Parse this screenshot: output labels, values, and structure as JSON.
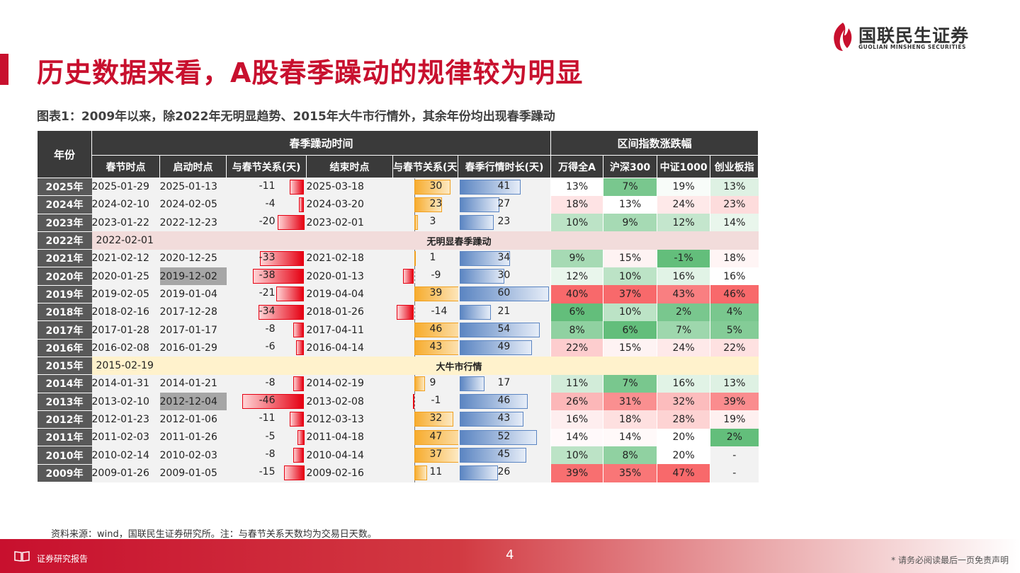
{
  "header": {
    "title": "历史数据来看，A股春季躁动的规律较为明显",
    "logo_cn": "国联民生证券",
    "logo_en": "GUOLIAN MINSHENG SECURITIES"
  },
  "figure_caption": "图表1：2009年以来，除2022年无明显趋势、2015年大牛市行情外，其余年份均出现春季躁动",
  "table": {
    "group_headers": {
      "year": "年份",
      "timing": "春季躁动时间",
      "returns": "区间指数涨跌幅"
    },
    "column_headers": [
      "春节时点",
      "启动时点",
      "与春节关系(天)",
      "结束时点",
      "与春节关系(天)",
      "春季行情时长(天)",
      "万得全A",
      "沪深300",
      "中证1000",
      "创业板指"
    ],
    "rows": [
      {
        "year": "2025年",
        "spring": "2025-01-29",
        "start": "2025-01-13",
        "start_rel": -11,
        "end": "2025-03-18",
        "end_rel": 30,
        "duration": 41,
        "wind": "13%",
        "hs300": "7%",
        "zz1000": "19%",
        "cyb": "13%"
      },
      {
        "year": "2024年",
        "spring": "2024-02-10",
        "start": "2024-02-05",
        "start_rel": -4,
        "end": "2024-03-20",
        "end_rel": 23,
        "duration": 27,
        "wind": "18%",
        "hs300": "13%",
        "zz1000": "24%",
        "cyb": "23%"
      },
      {
        "year": "2023年",
        "spring": "2023-01-22",
        "start": "2022-12-23",
        "start_rel": -20,
        "end": "2023-02-01",
        "end_rel": 3,
        "duration": 23,
        "wind": "10%",
        "hs300": "9%",
        "zz1000": "12%",
        "cyb": "14%"
      },
      {
        "year": "2022年",
        "spring": "2022-02-01",
        "special": "无明显春季躁动"
      },
      {
        "year": "2021年",
        "spring": "2021-02-12",
        "start": "2020-12-25",
        "start_rel": -33,
        "end": "2021-02-18",
        "end_rel": 1,
        "duration": 34,
        "wind": "9%",
        "hs300": "15%",
        "zz1000": "-1%",
        "cyb": "18%"
      },
      {
        "year": "2020年",
        "spring": "2020-01-25",
        "start": "2019-12-02",
        "start_hl": true,
        "start_rel": -38,
        "end": "2020-01-13",
        "end_rel": -9,
        "duration": 30,
        "wind": "12%",
        "hs300": "10%",
        "zz1000": "16%",
        "cyb": "16%"
      },
      {
        "year": "2019年",
        "spring": "2019-02-05",
        "start": "2019-01-04",
        "start_rel": -21,
        "end": "2019-04-04",
        "end_rel": 39,
        "duration": 60,
        "wind": "40%",
        "hs300": "37%",
        "zz1000": "43%",
        "cyb": "46%"
      },
      {
        "year": "2018年",
        "spring": "2018-02-16",
        "start": "2017-12-28",
        "start_rel": -34,
        "end": "2018-01-26",
        "end_rel": -14,
        "duration": 21,
        "wind": "6%",
        "hs300": "10%",
        "zz1000": "2%",
        "cyb": "4%"
      },
      {
        "year": "2017年",
        "spring": "2017-01-28",
        "start": "2017-01-17",
        "start_rel": -8,
        "end": "2017-04-11",
        "end_rel": 46,
        "duration": 54,
        "wind": "8%",
        "hs300": "6%",
        "zz1000": "7%",
        "cyb": "5%"
      },
      {
        "year": "2016年",
        "spring": "2016-02-08",
        "start": "2016-01-29",
        "start_rel": -6,
        "end": "2016-04-14",
        "end_rel": 43,
        "duration": 49,
        "wind": "22%",
        "hs300": "15%",
        "zz1000": "24%",
        "cyb": "22%"
      },
      {
        "year": "2015年",
        "spring": "2015-02-19",
        "special": "大牛市行情"
      },
      {
        "year": "2014年",
        "spring": "2014-01-31",
        "start": "2014-01-21",
        "start_rel": -8,
        "end": "2014-02-19",
        "end_rel": 9,
        "duration": 17,
        "wind": "11%",
        "hs300": "7%",
        "zz1000": "16%",
        "cyb": "13%"
      },
      {
        "year": "2013年",
        "spring": "2013-02-10",
        "start": "2012-12-04",
        "start_hl": true,
        "start_rel": -46,
        "end": "2013-02-08",
        "end_rel": -1,
        "duration": 46,
        "wind": "26%",
        "hs300": "31%",
        "zz1000": "32%",
        "cyb": "39%"
      },
      {
        "year": "2012年",
        "spring": "2012-01-23",
        "start": "2012-01-06",
        "start_rel": -11,
        "end": "2012-03-13",
        "end_rel": 32,
        "duration": 43,
        "wind": "16%",
        "hs300": "18%",
        "zz1000": "28%",
        "cyb": "19%"
      },
      {
        "year": "2011年",
        "spring": "2011-02-03",
        "start": "2011-01-26",
        "start_rel": -5,
        "end": "2011-04-18",
        "end_rel": 47,
        "duration": 52,
        "wind": "14%",
        "hs300": "14%",
        "zz1000": "20%",
        "cyb": "2%"
      },
      {
        "year": "2010年",
        "spring": "2010-02-14",
        "start": "2010-02-03",
        "start_rel": -8,
        "end": "2010-04-14",
        "end_rel": 37,
        "duration": 45,
        "wind": "10%",
        "hs300": "8%",
        "zz1000": "20%",
        "cyb": "-"
      },
      {
        "year": "2009年",
        "spring": "2009-01-26",
        "start": "2009-01-05",
        "start_rel": -15,
        "end": "2009-02-16",
        "end_rel": 11,
        "duration": 26,
        "wind": "39%",
        "hs300": "35%",
        "zz1000": "47%",
        "cyb": "-"
      }
    ]
  },
  "colors": {
    "brand": "#c8102e",
    "header_bg": "#3a3a3a",
    "year_bg": "#595959",
    "highlight_gray": "#a6a6a6",
    "special_2022_bg": "#f2dcdb",
    "special_2015_bg": "#fff2cc",
    "heat_high": "#f8696b",
    "heat_mid": "#ffffff",
    "heat_low": "#63be7b"
  },
  "source_note": "资料来源：wind，国联民生证券研究所。注：与春节关系天数均为交易日天数。",
  "footer": {
    "label": "证券研究报告",
    "page": "4",
    "disclaimer": "* 请务必阅读最后一页免责声明"
  }
}
